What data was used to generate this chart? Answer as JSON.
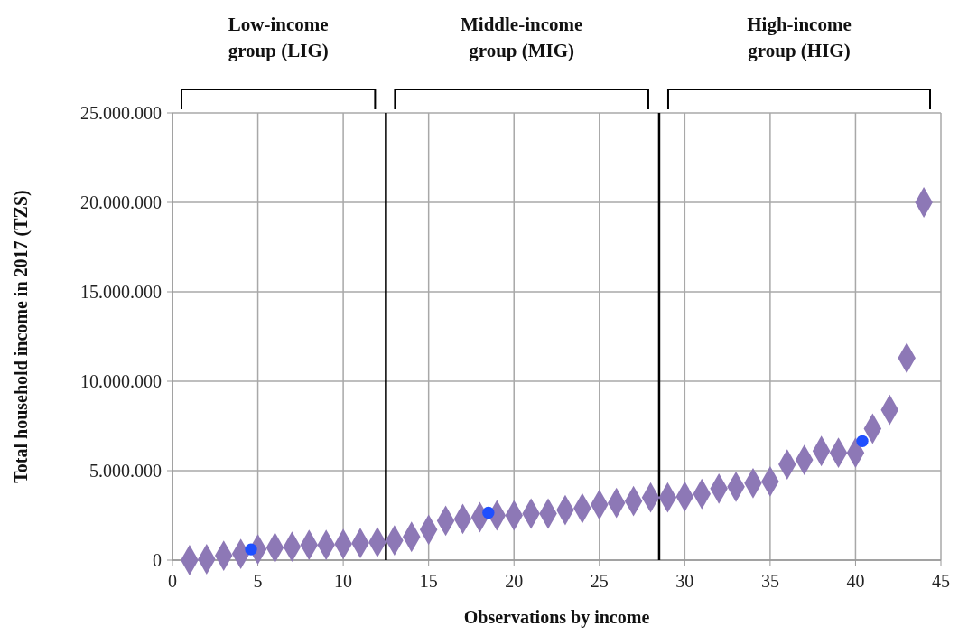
{
  "chart_data": {
    "type": "scatter",
    "xlabel": "Observations by income",
    "ylabel": "Total household income in 2017 (TZS)",
    "series": [
      {
        "color": "#8d78b6",
        "marker": "diamond",
        "x": [
          1,
          2,
          3,
          4,
          5,
          6,
          7,
          8,
          9,
          10,
          11,
          12,
          13,
          14,
          15,
          16,
          17,
          18,
          19,
          20,
          21,
          22,
          23,
          24,
          25,
          26,
          27,
          28,
          29,
          30,
          31,
          32,
          33,
          34,
          35,
          36,
          37,
          38,
          39,
          40,
          41,
          42,
          43,
          44
        ],
        "values": [
          0,
          50000,
          250000,
          350000,
          600000,
          700000,
          750000,
          850000,
          850000,
          900000,
          950000,
          1000000,
          1100000,
          1300000,
          1700000,
          2200000,
          2300000,
          2400000,
          2500000,
          2500000,
          2600000,
          2600000,
          2800000,
          2900000,
          3100000,
          3200000,
          3300000,
          3500000,
          3500000,
          3550000,
          3700000,
          4000000,
          4100000,
          4300000,
          4400000,
          5350000,
          5600000,
          6100000,
          6000000,
          6000000,
          7350000,
          8400000,
          11300000,
          20000000
        ]
      },
      {
        "color": "#1f4fff",
        "marker": "circle",
        "x": [
          4.6,
          18.5,
          40.4
        ],
        "values": [
          600000,
          2650000,
          6650000
        ]
      }
    ],
    "xlim": [
      0,
      45
    ],
    "xticks": [
      0,
      5,
      10,
      15,
      20,
      25,
      30,
      35,
      40,
      45
    ],
    "ylim": [
      0,
      25000000
    ],
    "yticks": [
      {
        "value": 0,
        "label": "0"
      },
      {
        "value": 5000000,
        "label": "5.000.000"
      },
      {
        "value": 10000000,
        "label": "10.000.000"
      },
      {
        "value": 15000000,
        "label": "15.000.000"
      },
      {
        "value": 20000000,
        "label": "20.000.000"
      },
      {
        "value": 25000000,
        "label": "25.000.000"
      }
    ],
    "grid": true,
    "ref_lines": [
      {
        "axis": "x",
        "value": 12.5,
        "color": "#000000"
      },
      {
        "axis": "x",
        "value": 28.5,
        "color": "#000000"
      }
    ],
    "annotations": [
      "Low-income group (LIG)",
      "Middle-income group (MIG)",
      "High-income group (HIG)"
    ]
  }
}
